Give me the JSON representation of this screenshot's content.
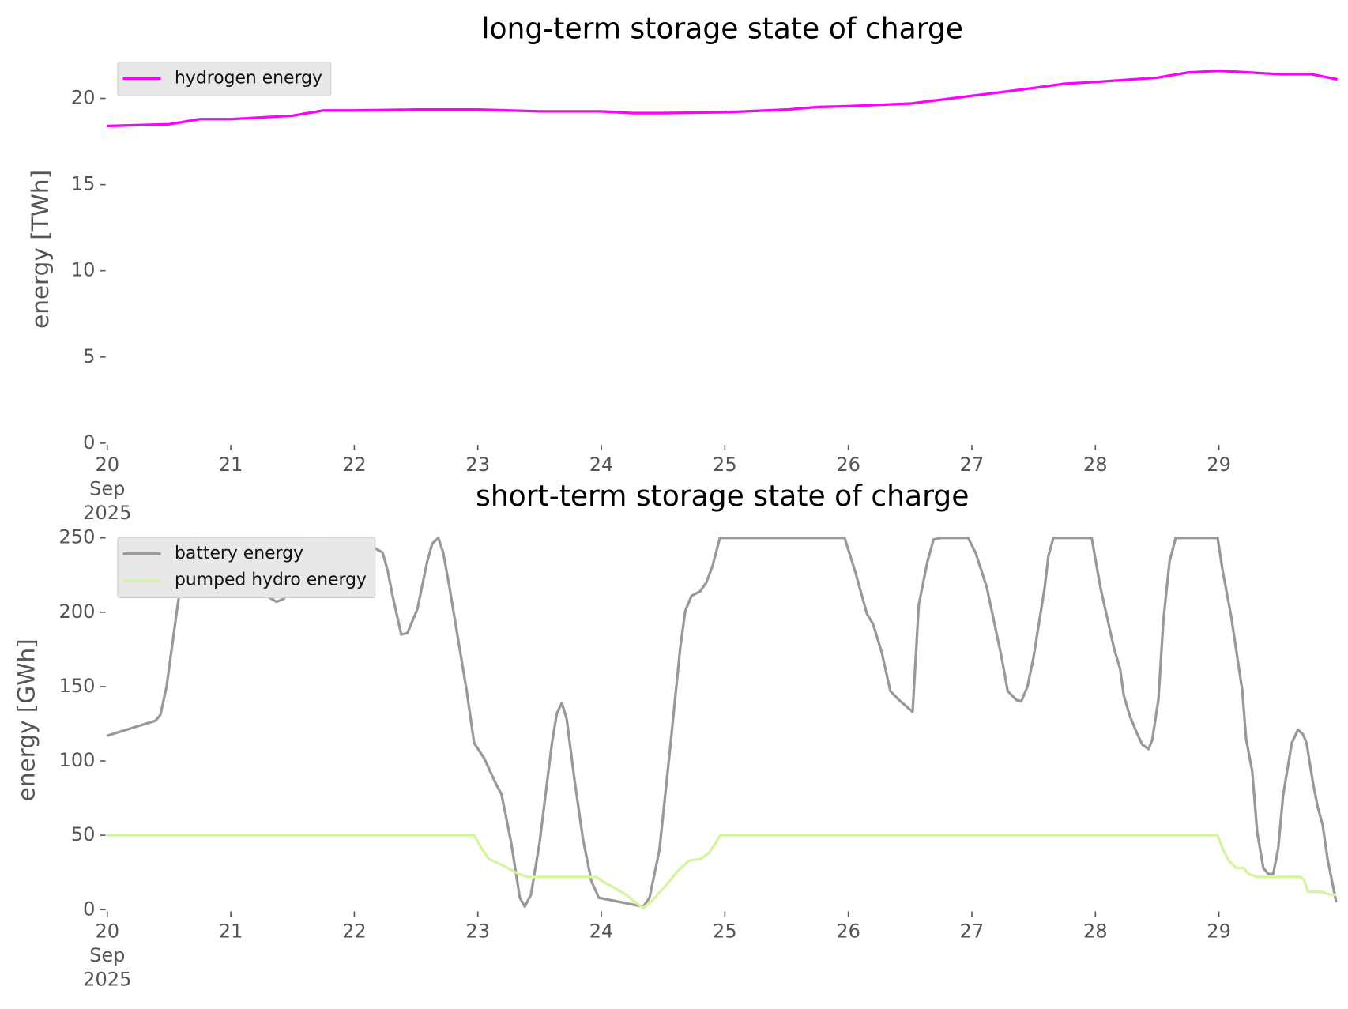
{
  "chart_data": [
    {
      "type": "line",
      "title": "long-term storage state of charge",
      "ylabel": "energy [TWh]",
      "xlim": [
        20,
        29.96
      ],
      "ylim": [
        0,
        22.5
      ],
      "xticks": [
        {
          "value": 20,
          "label": "20\nSep\n2025"
        },
        21,
        22,
        23,
        24,
        25,
        26,
        27,
        28,
        29
      ],
      "yticks": [
        0,
        5,
        10,
        15,
        20
      ],
      "grid": false,
      "legend": "upper left",
      "series": [
        {
          "name": "hydrogen energy",
          "color": "#ff00ff",
          "x": [
            20,
            20.5,
            20.75,
            21,
            21.5,
            21.75,
            22,
            22.5,
            23,
            23.25,
            23.5,
            24,
            24.25,
            24.5,
            25,
            25.5,
            25.75,
            26,
            26.5,
            27,
            27.5,
            27.75,
            28,
            28.5,
            28.75,
            29,
            29.25,
            29.5,
            29.75,
            29.96
          ],
          "values": [
            18.4,
            18.5,
            18.8,
            18.8,
            19.0,
            19.3,
            19.3,
            19.35,
            19.35,
            19.3,
            19.25,
            19.25,
            19.15,
            19.15,
            19.2,
            19.35,
            19.5,
            19.55,
            19.7,
            20.15,
            20.6,
            20.85,
            20.95,
            21.2,
            21.5,
            21.6,
            21.5,
            21.4,
            21.4,
            21.1
          ]
        }
      ]
    },
    {
      "type": "line",
      "title": "short-term storage state of charge",
      "ylabel": "energy [GWh]",
      "xlim": [
        20,
        29.96
      ],
      "ylim": [
        0,
        255
      ],
      "xticks": [
        {
          "value": 20,
          "label": "20\nSep\n2025"
        },
        21,
        22,
        23,
        24,
        25,
        26,
        27,
        28,
        29
      ],
      "yticks": [
        0,
        50,
        100,
        150,
        200,
        250
      ],
      "grid": false,
      "legend": "upper left",
      "series": [
        {
          "name": "battery energy",
          "color": "#999999",
          "x": [
            20,
            20.39,
            20.43,
            20.48,
            20.57,
            20.64,
            20.71,
            20.81,
            20.88,
            20.97,
            21.06,
            21.23,
            21.37,
            21.43,
            21.55,
            21.79,
            21.9,
            21.97,
            22.17,
            22.23,
            22.27,
            22.31,
            22.38,
            22.43,
            22.51,
            22.59,
            22.63,
            22.68,
            22.72,
            22.77,
            22.91,
            22.97,
            23.05,
            23.15,
            23.19,
            23.22,
            23.27,
            23.34,
            23.38,
            23.43,
            23.5,
            23.6,
            23.64,
            23.68,
            23.72,
            23.78,
            23.85,
            23.92,
            23.98,
            24.34,
            24.39,
            24.47,
            24.55,
            24.64,
            24.68,
            24.73,
            24.8,
            24.85,
            24.9,
            24.96,
            25.97,
            26.06,
            26.15,
            26.2,
            26.27,
            26.34,
            26.41,
            26.52,
            26.57,
            26.64,
            26.69,
            26.75,
            26.97,
            27.03,
            27.12,
            27.24,
            27.29,
            27.36,
            27.4,
            27.45,
            27.5,
            27.59,
            27.62,
            27.66,
            27.97,
            28.04,
            28.15,
            28.2,
            28.23,
            28.28,
            28.34,
            28.38,
            28.43,
            28.46,
            28.51,
            28.55,
            28.6,
            28.65,
            28.99,
            29.03,
            29.1,
            29.19,
            29.22,
            29.27,
            29.31,
            29.36,
            29.4,
            29.44,
            29.48,
            29.52,
            29.59,
            29.64,
            29.68,
            29.71,
            29.76,
            29.8,
            29.84,
            29.88,
            29.95
          ],
          "values": [
            117,
            127,
            131,
            150,
            205,
            240,
            250,
            231,
            234,
            246,
            226,
            214,
            207,
            209,
            250,
            250,
            242,
            240,
            243,
            240,
            228,
            211,
            185,
            186,
            202,
            234,
            246,
            250,
            240,
            217,
            147,
            112,
            102,
            84,
            78,
            66,
            45,
            8,
            2,
            10,
            45,
            112,
            132,
            139,
            128,
            89,
            48,
            19,
            8,
            2,
            8,
            40,
            103,
            177,
            201,
            211,
            214,
            220,
            231,
            250,
            250,
            226,
            199,
            192,
            173,
            147,
            141,
            133,
            205,
            234,
            249,
            250,
            250,
            240,
            217,
            170,
            147,
            141,
            140,
            150,
            170,
            217,
            238,
            250,
            250,
            217,
            176,
            162,
            144,
            130,
            118,
            111,
            108,
            114,
            141,
            194,
            234,
            250,
            250,
            228,
            197,
            147,
            115,
            93,
            52,
            28,
            24,
            24,
            41,
            77,
            112,
            121,
            118,
            112,
            86,
            69,
            57,
            34,
            5
          ]
        },
        {
          "name": "pumped hydro energy",
          "color": "#d4f5a0",
          "x": [
            20,
            22.97,
            23.04,
            23.09,
            23.17,
            23.22,
            23.33,
            23.4,
            23.96,
            24.01,
            24.1,
            24.2,
            24.26,
            24.34,
            24.41,
            24.52,
            24.62,
            24.71,
            24.8,
            24.87,
            24.92,
            24.96,
            28.99,
            29.03,
            29.08,
            29.14,
            29.2,
            29.24,
            29.31,
            29.66,
            29.69,
            29.72,
            29.83,
            29.9,
            29.95
          ],
          "values": [
            50,
            50,
            40,
            34,
            31,
            29,
            24,
            22,
            22,
            19,
            15,
            10,
            6,
            1,
            6,
            16,
            26,
            33,
            34,
            38,
            44,
            50,
            50,
            41,
            33,
            28,
            28,
            24,
            22,
            22,
            20,
            12,
            12,
            10,
            10
          ]
        }
      ]
    }
  ]
}
